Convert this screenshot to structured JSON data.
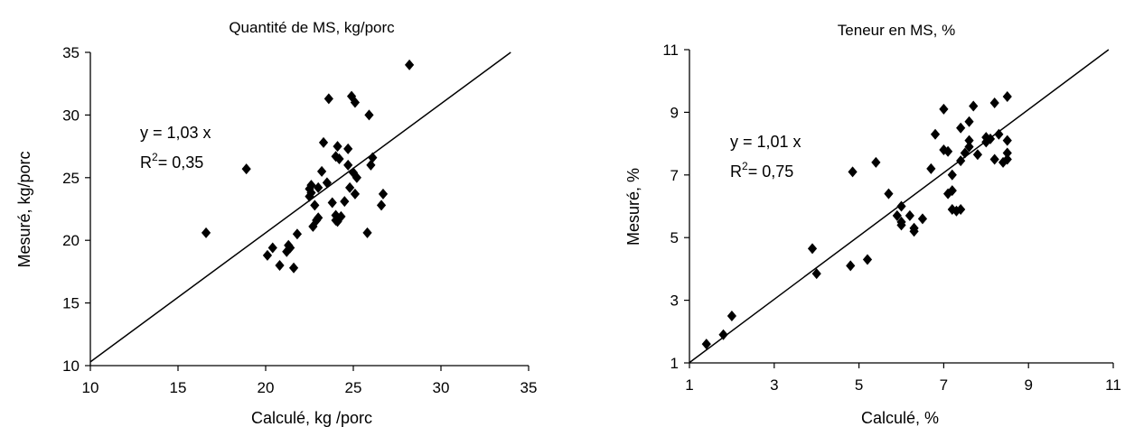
{
  "chart_data": [
    {
      "type": "scatter",
      "title": "Quantité de  MS, kg/porc",
      "xlabel": "Calculé, kg /porc",
      "ylabel": "Mesuré, kg/porc",
      "xlim": [
        10,
        35
      ],
      "ylim": [
        10,
        35
      ],
      "xticks": [
        10,
        15,
        20,
        25,
        30,
        35
      ],
      "yticks": [
        10,
        15,
        20,
        25,
        30,
        35
      ],
      "tick_labels_x": [
        "10",
        "15",
        "20",
        "25",
        "30",
        "35"
      ],
      "tick_labels_y": [
        "10",
        "15",
        "20",
        "25",
        "30",
        "35"
      ],
      "grid": false,
      "marker": "diamond",
      "marker_color": "#000000",
      "equation": "y =  1,03 x",
      "r2_prefix": "R",
      "r2_sup": "2",
      "r2_value": "= 0,35",
      "fit_line": {
        "slope": 1.03,
        "intercept": 0
      },
      "points": [
        [
          16.6,
          20.6
        ],
        [
          18.9,
          25.7
        ],
        [
          20.1,
          18.8
        ],
        [
          20.4,
          19.4
        ],
        [
          20.8,
          18.0
        ],
        [
          21.2,
          19.1
        ],
        [
          21.3,
          19.6
        ],
        [
          21.4,
          19.4
        ],
        [
          21.6,
          17.8
        ],
        [
          21.8,
          20.5
        ],
        [
          22.5,
          23.5
        ],
        [
          22.5,
          24.1
        ],
        [
          22.6,
          23.8
        ],
        [
          22.6,
          24.4
        ],
        [
          22.7,
          21.1
        ],
        [
          22.8,
          22.8
        ],
        [
          22.9,
          21.6
        ],
        [
          23.0,
          24.2
        ],
        [
          23.0,
          21.8
        ],
        [
          23.2,
          25.5
        ],
        [
          23.3,
          27.8
        ],
        [
          23.5,
          24.6
        ],
        [
          23.6,
          31.3
        ],
        [
          23.8,
          23.0
        ],
        [
          24.0,
          21.6
        ],
        [
          24.0,
          22.0
        ],
        [
          24.0,
          26.7
        ],
        [
          24.1,
          27.5
        ],
        [
          24.1,
          21.5
        ],
        [
          24.2,
          26.5
        ],
        [
          24.3,
          21.9
        ],
        [
          24.5,
          23.1
        ],
        [
          24.7,
          27.3
        ],
        [
          24.7,
          26.0
        ],
        [
          24.8,
          24.2
        ],
        [
          24.9,
          31.5
        ],
        [
          25.0,
          25.4
        ],
        [
          25.1,
          31.0
        ],
        [
          25.2,
          25.0
        ],
        [
          25.1,
          23.7
        ],
        [
          25.8,
          20.6
        ],
        [
          25.9,
          30.0
        ],
        [
          26.0,
          26.0
        ],
        [
          26.1,
          26.6
        ],
        [
          26.6,
          22.8
        ],
        [
          26.7,
          23.7
        ],
        [
          28.2,
          34.0
        ]
      ]
    },
    {
      "type": "scatter",
      "title": "Teneur en MS, %",
      "xlabel": "Calculé, %",
      "ylabel": "Mesuré, %",
      "xlim": [
        1,
        11
      ],
      "ylim": [
        1,
        11
      ],
      "xticks": [
        1,
        3,
        5,
        7,
        9,
        11
      ],
      "yticks": [
        1,
        3,
        5,
        7,
        9,
        11
      ],
      "tick_labels_x": [
        "1",
        "3",
        "5",
        "7",
        "9",
        "11"
      ],
      "tick_labels_y": [
        "1",
        "3",
        "5",
        "7",
        "9",
        "11"
      ],
      "grid": false,
      "marker": "diamond",
      "marker_color": "#000000",
      "equation": "y =  1,01 x",
      "r2_prefix": "R",
      "r2_sup": "2",
      "r2_value": "= 0,75",
      "fit_line": {
        "slope": 1.01,
        "intercept": 0
      },
      "points": [
        [
          1.4,
          1.6
        ],
        [
          1.8,
          1.9
        ],
        [
          2.0,
          2.5
        ],
        [
          3.9,
          4.65
        ],
        [
          4.0,
          3.85
        ],
        [
          4.8,
          4.1
        ],
        [
          4.85,
          7.1
        ],
        [
          5.2,
          4.3
        ],
        [
          5.4,
          7.4
        ],
        [
          5.7,
          6.4
        ],
        [
          5.9,
          5.7
        ],
        [
          6.0,
          6.0
        ],
        [
          6.0,
          5.5
        ],
        [
          6.0,
          5.4
        ],
        [
          6.2,
          5.7
        ],
        [
          6.3,
          5.3
        ],
        [
          6.3,
          5.2
        ],
        [
          6.5,
          5.6
        ],
        [
          6.7,
          7.2
        ],
        [
          6.8,
          8.3
        ],
        [
          7.0,
          9.1
        ],
        [
          7.0,
          7.8
        ],
        [
          7.1,
          7.75
        ],
        [
          7.1,
          6.4
        ],
        [
          7.2,
          6.5
        ],
        [
          7.2,
          7.0
        ],
        [
          7.2,
          5.9
        ],
        [
          7.3,
          5.85
        ],
        [
          7.4,
          5.9
        ],
        [
          7.4,
          8.5
        ],
        [
          7.4,
          7.45
        ],
        [
          7.5,
          7.7
        ],
        [
          7.6,
          8.1
        ],
        [
          7.6,
          7.9
        ],
        [
          7.6,
          8.7
        ],
        [
          7.7,
          9.2
        ],
        [
          7.8,
          7.65
        ],
        [
          8.0,
          8.2
        ],
        [
          8.0,
          8.05
        ],
        [
          8.1,
          8.15
        ],
        [
          8.2,
          9.3
        ],
        [
          8.2,
          7.5
        ],
        [
          8.3,
          8.3
        ],
        [
          8.4,
          7.4
        ],
        [
          8.5,
          8.1
        ],
        [
          8.5,
          7.7
        ],
        [
          8.5,
          7.5
        ],
        [
          8.5,
          9.5
        ]
      ]
    }
  ]
}
